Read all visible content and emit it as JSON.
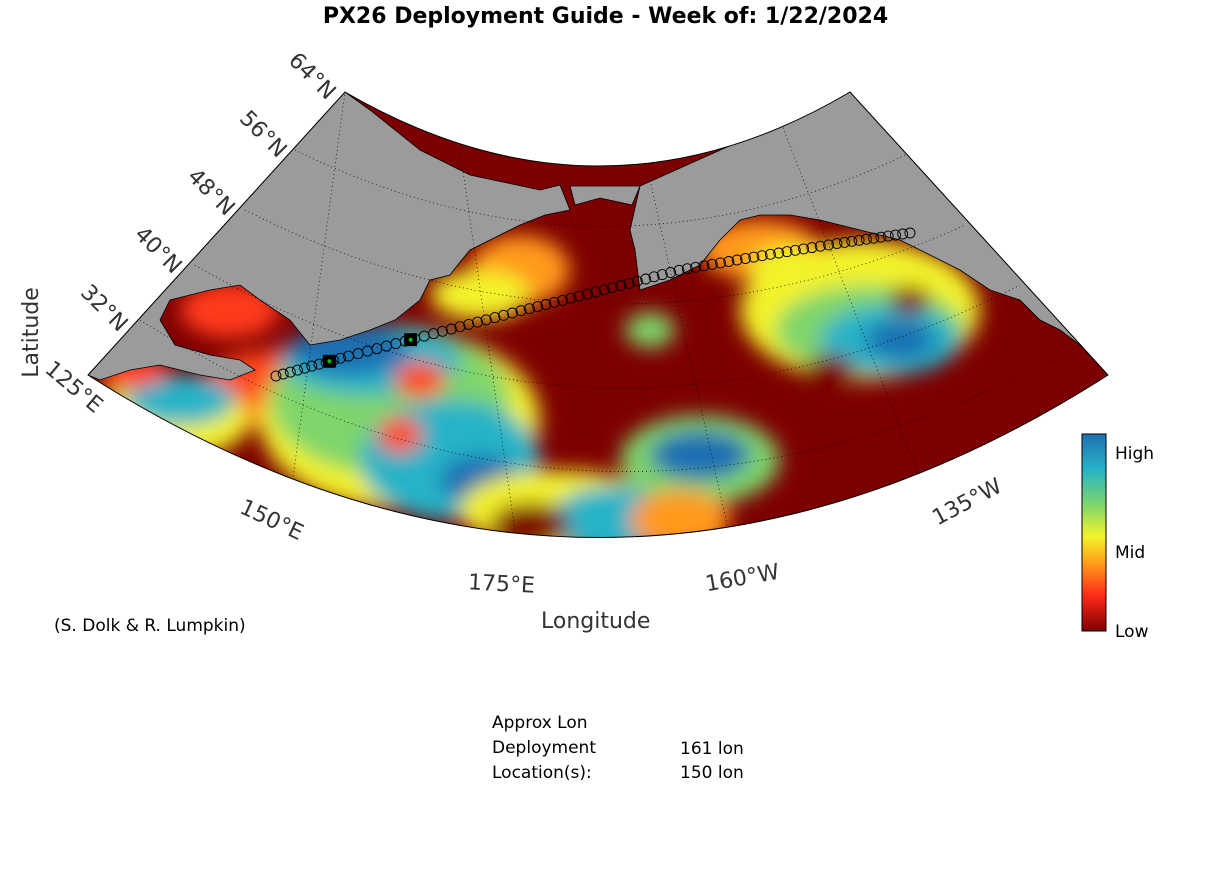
{
  "title": "PX26 Deployment Guide - Week of: 1/22/2024",
  "axes": {
    "xlabel": "Longitude",
    "ylabel": "Latitude",
    "lat_ticks": [
      "64°N",
      "56°N",
      "48°N",
      "40°N",
      "32°N"
    ],
    "lon_ticks": [
      "125°E",
      "150°E",
      "175°E",
      "160°W",
      "135°W"
    ]
  },
  "credit": "(S. Dolk & R. Lumpkin)",
  "colorbar": {
    "labels": [
      "High",
      "Mid",
      "Low"
    ],
    "colors": [
      "#1f6fb2",
      "#27b3c7",
      "#7fd56b",
      "#f3f32a",
      "#ff9a1a",
      "#ff2a1a",
      "#7d0000"
    ]
  },
  "legend_info": {
    "row1": "Approx Lon",
    "row2_label": "Deployment",
    "row3_label": "Location(s):",
    "values": [
      "161 lon",
      "150 lon"
    ]
  },
  "colors": {
    "land": "#9b9b9b",
    "low": "#7d0000",
    "ship_track": "#000000",
    "deploy_marker": "#00c000"
  },
  "track": {
    "start_lon": 141,
    "end_lon": 234,
    "deployments_lon": [
      161,
      150
    ]
  }
}
